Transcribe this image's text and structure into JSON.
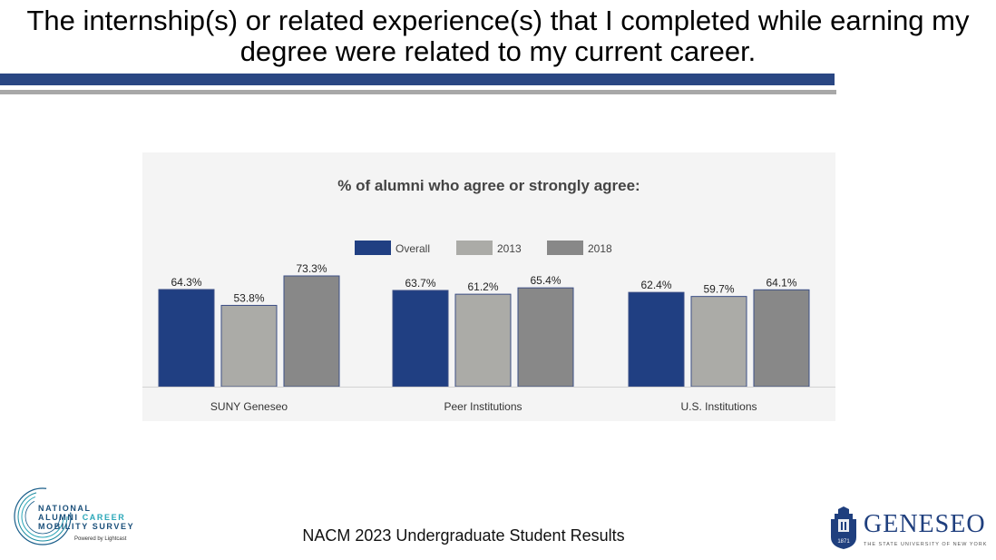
{
  "slide": {
    "title_line1": "The internship(s) or related experience(s) that I completed while earning my",
    "title_line2": "degree were related to my current career.",
    "footer": "NACM 2023 Undergraduate Student Results"
  },
  "nacm_logo": {
    "line1": "NATIONAL",
    "line2a": "ALUMNI",
    "line2b": "CAREER",
    "line3": "MOBILITY SURVEY",
    "powered": "Powered by Lightcast"
  },
  "geneseo_logo": {
    "name": "GENESEO",
    "subtitle": "THE STATE UNIVERSITY OF NEW YORK",
    "seal_year": "1871"
  },
  "colors": {
    "title_bar": "#2a4783",
    "overall": "#203f82",
    "y2013": "#ababa7",
    "y2018": "#888888"
  },
  "chart_data": {
    "type": "bar",
    "title": "% of alumni who agree or strongly agree:",
    "categories": [
      "SUNY Geneseo",
      "Peer Institutions",
      "U.S. Institutions"
    ],
    "series": [
      {
        "name": "Overall",
        "values": [
          64.3,
          63.7,
          62.4
        ],
        "labels": [
          "64.3%",
          "63.7%",
          "62.4%"
        ],
        "color": "#203f82"
      },
      {
        "name": "2013",
        "values": [
          53.8,
          61.2,
          59.7
        ],
        "labels": [
          "53.8%",
          "61.2%",
          "59.7%"
        ],
        "color": "#ababa7"
      },
      {
        "name": "2018",
        "values": [
          73.3,
          65.4,
          64.1
        ],
        "labels": [
          "73.3%",
          "65.4%",
          "64.1%"
        ],
        "color": "#888888"
      }
    ],
    "ylim": [
      0,
      100
    ],
    "xlabel": "",
    "ylabel": "",
    "legend": "top-center",
    "grid": false
  }
}
